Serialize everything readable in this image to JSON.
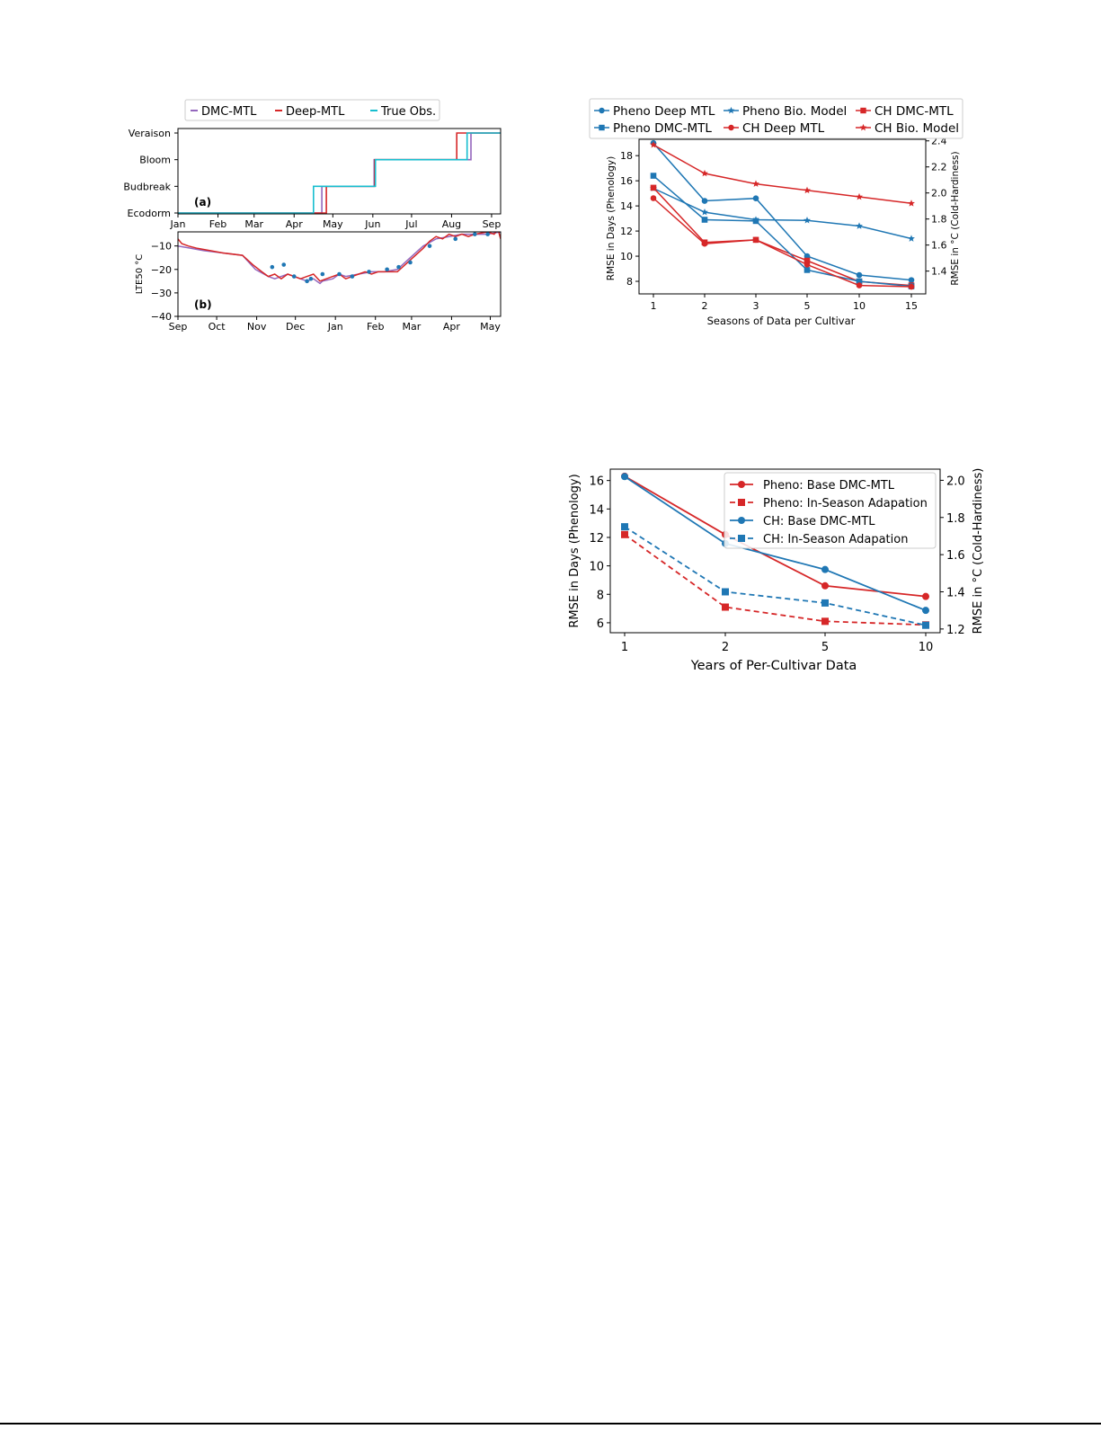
{
  "colors": {
    "red": "#d62728",
    "blue": "#1f77b4",
    "cyan": "#17becf",
    "purple": "#9467bd",
    "axis": "#000000",
    "legend_border": "#cccccc"
  },
  "chart_data": [
    {
      "id": "panel-a",
      "type": "line",
      "title": "",
      "panel_label": "(a)",
      "y_categories": [
        "Ecodorm",
        "Budbreak",
        "Bloom",
        "Veraison"
      ],
      "x_ticks": [
        "Jan",
        "Feb",
        "Mar",
        "Apr",
        "May",
        "Jun",
        "Jul",
        "Aug",
        "Sep"
      ],
      "legend_location": "top-center",
      "series": [
        {
          "name": "DMC-MTL",
          "color": "#9467bd",
          "steps": [
            [
              0,
              0
            ],
            [
              111.5,
              0
            ],
            [
              111.5,
              1
            ],
            [
              152,
              1
            ],
            [
              152,
              2
            ],
            [
              227,
              2
            ],
            [
              227,
              3
            ],
            [
              250,
              3
            ]
          ]
        },
        {
          "name": "Deep-MTL",
          "color": "#d62728",
          "steps": [
            [
              0,
              0
            ],
            [
              115,
              0
            ],
            [
              115,
              1
            ],
            [
              152.5,
              1
            ],
            [
              152.5,
              2
            ],
            [
              216,
              2
            ],
            [
              216,
              3
            ],
            [
              250,
              3
            ]
          ]
        },
        {
          "name": "True Obs.",
          "color": "#17becf",
          "steps": [
            [
              0,
              0
            ],
            [
              105,
              0
            ],
            [
              105,
              1
            ],
            [
              153,
              1
            ],
            [
              153,
              2
            ],
            [
              224,
              2
            ],
            [
              224,
              3
            ],
            [
              250,
              3
            ]
          ]
        }
      ]
    },
    {
      "id": "panel-b",
      "type": "line",
      "title": "",
      "panel_label": "(b)",
      "ylabel": "LTE50 °C",
      "y_ticks": [
        "−10",
        "−20",
        "−30",
        "−40"
      ],
      "ylim": [
        -40,
        -4
      ],
      "x_ticks": [
        "Sep",
        "Oct",
        "Nov",
        "Dec",
        "Jan",
        "Feb",
        "Mar",
        "Apr",
        "May"
      ],
      "series": [
        {
          "name": "DMC-MTL",
          "color": "#9467bd",
          "x": [
            0,
            10,
            20,
            35,
            50,
            60,
            70,
            75,
            80,
            85,
            90,
            95,
            100,
            105,
            110,
            112,
            120,
            125,
            130,
            140,
            150,
            160,
            170,
            180,
            190,
            200,
            210,
            220,
            230,
            240,
            250
          ],
          "y": [
            -10,
            -11,
            -12,
            -13,
            -14,
            -20,
            -23,
            -24,
            -23,
            -22,
            -23,
            -24,
            -25,
            -24,
            -26,
            -25,
            -24,
            -22,
            -23,
            -22,
            -21,
            -21,
            -20,
            -15,
            -10,
            -7,
            -6,
            -5,
            -5,
            -5,
            -4
          ]
        },
        {
          "name": "Deep-MTL",
          "color": "#d62728",
          "x": [
            0,
            3,
            8,
            15,
            25,
            35,
            50,
            58,
            65,
            70,
            75,
            80,
            85,
            90,
            95,
            100,
            105,
            110,
            115,
            120,
            125,
            130,
            135,
            140,
            145,
            150,
            155,
            160,
            170,
            180,
            190,
            195,
            200,
            205,
            210,
            215,
            220,
            225,
            230,
            240,
            245,
            248,
            250
          ],
          "y": [
            -7,
            -9,
            -10,
            -11,
            -12,
            -13,
            -14,
            -18,
            -21,
            -23,
            -22,
            -24,
            -22,
            -23,
            -24,
            -23,
            -22,
            -25,
            -24,
            -23,
            -22,
            -24,
            -23,
            -22,
            -21,
            -22,
            -21,
            -21,
            -21,
            -16,
            -11,
            -8,
            -6,
            -7,
            -5,
            -6,
            -5,
            -6,
            -5,
            -4,
            -5,
            -3,
            -7
          ]
        },
        {
          "name": "True Obs.",
          "color": "#1f77b4",
          "points": [
            [
              73,
              -19
            ],
            [
              82,
              -18
            ],
            [
              90,
              -23
            ],
            [
              100,
              -25
            ],
            [
              103,
              -24
            ],
            [
              112,
              -22
            ],
            [
              125,
              -22
            ],
            [
              135,
              -23
            ],
            [
              148,
              -21
            ],
            [
              162,
              -20
            ],
            [
              171,
              -19
            ],
            [
              180,
              -17
            ],
            [
              195,
              -10
            ],
            [
              215,
              -7
            ],
            [
              230,
              -5
            ],
            [
              240,
              -5
            ]
          ]
        }
      ]
    },
    {
      "id": "chart-seasons",
      "type": "line",
      "title": "",
      "xlabel": "Seasons of Data per Cultivar",
      "ylabel": "RMSE in Days (Phenology)",
      "ylabel_right": "RMSE in °C (Cold-Hardiness)",
      "x": [
        1,
        2,
        3,
        5,
        10,
        15
      ],
      "x_ticks": [
        "1",
        "2",
        "3",
        "5",
        "10",
        "15"
      ],
      "ylim": [
        7,
        19.3
      ],
      "y_ticks": [
        8,
        10,
        12,
        14,
        16,
        18
      ],
      "ylim_right": [
        1.225,
        2.412
      ],
      "y_ticks_right": [
        "1.4",
        "1.6",
        "1.8",
        "2.0",
        "2.2",
        "2.4"
      ],
      "legend_location": "top",
      "legend_entries": [
        "Pheno Deep MTL",
        "Pheno Bio. Model",
        "CH DMC-MTL",
        "Pheno DMC-MTL",
        "CH Deep MTL",
        "CH Bio. Model"
      ],
      "series": [
        {
          "name": "Pheno Deep MTL",
          "axis": "left",
          "color": "#1f77b4",
          "marker": "circle",
          "values": [
            19.0,
            14.4,
            14.6,
            10.0,
            8.5,
            8.1
          ]
        },
        {
          "name": "Pheno Bio. Model",
          "axis": "left",
          "color": "#1f77b4",
          "marker": "star",
          "values": [
            15.4,
            13.5,
            12.9,
            12.85,
            12.4,
            11.4
          ]
        },
        {
          "name": "CH DMC-MTL",
          "axis": "right",
          "color": "#d62728",
          "marker": "square",
          "values": [
            2.04,
            1.62,
            1.64,
            1.48,
            1.32,
            1.29
          ]
        },
        {
          "name": "Pheno DMC-MTL",
          "axis": "left",
          "color": "#1f77b4",
          "marker": "square",
          "values": [
            16.4,
            12.9,
            12.8,
            8.9,
            8.0,
            7.6
          ]
        },
        {
          "name": "CH Deep MTL",
          "axis": "right",
          "color": "#d62728",
          "marker": "circle",
          "values": [
            1.96,
            1.61,
            1.64,
            1.45,
            1.29,
            1.28
          ]
        },
        {
          "name": "CH Bio. Model",
          "axis": "right",
          "color": "#d62728",
          "marker": "star",
          "values": [
            2.37,
            2.15,
            2.07,
            2.02,
            1.97,
            1.92
          ]
        }
      ]
    },
    {
      "id": "chart-years",
      "type": "line",
      "title": "",
      "xlabel": "Years of Per-Cultivar Data",
      "ylabel": "RMSE in Days (Phenology)",
      "ylabel_right": "RMSE in °C (Cold-Hardiness)",
      "x": [
        1,
        2,
        5,
        10
      ],
      "x_ticks": [
        "1",
        "2",
        "5",
        "10"
      ],
      "ylim": [
        5.3,
        16.8
      ],
      "y_ticks": [
        6,
        8,
        10,
        12,
        14,
        16
      ],
      "ylim_right": [
        1.18,
        2.06
      ],
      "y_ticks_right": [
        "1.2",
        "1.4",
        "1.6",
        "1.8",
        "2.0"
      ],
      "legend_location": "top-right",
      "series": [
        {
          "name": "Pheno: Base DMC-MTL",
          "axis": "left",
          "color": "#d62728",
          "marker": "circle",
          "dash": false,
          "values": [
            16.3,
            12.2,
            8.6,
            7.85
          ]
        },
        {
          "name": "Pheno: In-Season Adapation",
          "axis": "left",
          "color": "#d62728",
          "marker": "square",
          "dash": true,
          "values": [
            12.2,
            7.1,
            6.1,
            5.85
          ]
        },
        {
          "name": "CH: Base DMC-MTL",
          "axis": "right",
          "color": "#1f77b4",
          "marker": "circle",
          "dash": false,
          "values": [
            2.02,
            1.66,
            1.52,
            1.3
          ]
        },
        {
          "name": "CH: In-Season Adapation",
          "axis": "right",
          "color": "#1f77b4",
          "marker": "square",
          "dash": true,
          "values": [
            1.75,
            1.4,
            1.34,
            1.22
          ]
        }
      ]
    }
  ]
}
